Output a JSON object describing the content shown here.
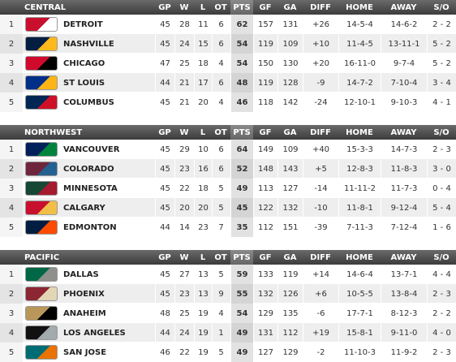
{
  "columns": [
    "GP",
    "W",
    "L",
    "OT",
    "PTS",
    "GF",
    "GA",
    "DIFF",
    "HOME",
    "AWAY",
    "S/O"
  ],
  "divisions": [
    {
      "name": "CENTRAL",
      "rows": [
        [
          "1",
          "DETROIT",
          "45",
          "28",
          "11",
          "6",
          "62",
          "157",
          "131",
          "+26",
          "14-5-4",
          "14-6-2",
          "2 - 2"
        ],
        [
          "2",
          "NASHVILLE",
          "45",
          "24",
          "15",
          "6",
          "54",
          "119",
          "109",
          "+10",
          "11-4-5",
          "13-11-1",
          "5 - 2"
        ],
        [
          "3",
          "CHICAGO",
          "47",
          "25",
          "18",
          "4",
          "54",
          "150",
          "130",
          "+20",
          "16-11-0",
          "9-7-4",
          "5 - 2"
        ],
        [
          "4",
          "ST LOUIS",
          "44",
          "21",
          "17",
          "6",
          "48",
          "119",
          "128",
          "-9",
          "14-7-2",
          "7-10-4",
          "3 - 4"
        ],
        [
          "5",
          "COLUMBUS",
          "45",
          "21",
          "20",
          "4",
          "46",
          "118",
          "142",
          "-24",
          "12-10-1",
          "9-10-3",
          "4 - 1"
        ]
      ]
    },
    {
      "name": "NORTHWEST",
      "rows": [
        [
          "1",
          "VANCOUVER",
          "45",
          "29",
          "10",
          "6",
          "64",
          "149",
          "109",
          "+40",
          "15-3-3",
          "14-7-3",
          "2 - 3"
        ],
        [
          "2",
          "COLORADO",
          "45",
          "23",
          "16",
          "6",
          "52",
          "148",
          "143",
          "+5",
          "12-8-3",
          "11-8-3",
          "3 - 0"
        ],
        [
          "3",
          "MINNESOTA",
          "45",
          "22",
          "18",
          "5",
          "49",
          "113",
          "127",
          "-14",
          "11-11-2",
          "11-7-3",
          "0 - 4"
        ],
        [
          "4",
          "CALGARY",
          "45",
          "20",
          "20",
          "5",
          "45",
          "122",
          "132",
          "-10",
          "11-8-1",
          "9-12-4",
          "5 - 4"
        ],
        [
          "5",
          "EDMONTON",
          "44",
          "14",
          "23",
          "7",
          "35",
          "112",
          "151",
          "-39",
          "7-11-3",
          "7-12-4",
          "1 - 6"
        ]
      ]
    },
    {
      "name": "PACIFIC",
      "rows": [
        [
          "1",
          "DALLAS",
          "45",
          "27",
          "13",
          "5",
          "59",
          "133",
          "119",
          "+14",
          "14-6-4",
          "13-7-1",
          "4 - 4"
        ],
        [
          "2",
          "PHOENIX",
          "45",
          "23",
          "13",
          "9",
          "55",
          "132",
          "126",
          "+6",
          "10-5-5",
          "13-8-4",
          "2 - 3"
        ],
        [
          "3",
          "ANAHEIM",
          "48",
          "25",
          "19",
          "4",
          "54",
          "129",
          "135",
          "-6",
          "17-7-1",
          "8-12-3",
          "2 - 2"
        ],
        [
          "4",
          "LOS ANGELES",
          "44",
          "24",
          "19",
          "1",
          "49",
          "131",
          "112",
          "+19",
          "15-8-1",
          "9-11-0",
          "4 - 0"
        ],
        [
          "5",
          "SAN JOSE",
          "46",
          "22",
          "19",
          "5",
          "49",
          "127",
          "129",
          "-2",
          "11-10-3",
          "11-9-2",
          "2 - 3"
        ]
      ]
    }
  ]
}
